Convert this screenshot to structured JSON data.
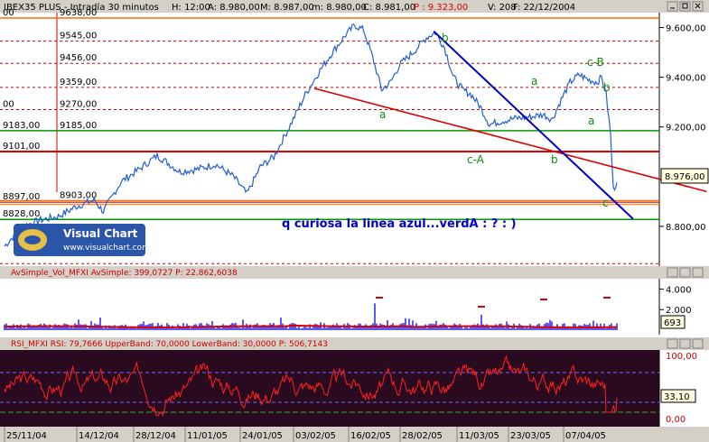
{
  "colors": {
    "price": "#1f5fd0",
    "blue_trend": "#0000c8",
    "red_trend": "#e00000",
    "support_green": "#009900",
    "level_orange": "#ff6a00",
    "level_red": "#dd0000",
    "dashed_red": "#cc0000",
    "wave_label": "#0a8f0a",
    "annotation": "#0000cc",
    "rsi_bg": "#2a0a1e",
    "rsi_line": "#ff2020",
    "volume": "#0000ee",
    "volume_avg": "#dd0000",
    "header_bg": "#d4d0c8"
  },
  "price_panel": {
    "header": {
      "symbol": "IBEX35 PLUS - Intradía 30 minutos",
      "fields": [
        "H: 12:00",
        "A: 8.980,00",
        "M: 8.987,00",
        "m: 8.980,00",
        "C: 8.981,00"
      ],
      "highlight": "P : 9.323,00",
      "tail": [
        "V: 208",
        "F: 22/12/2004"
      ]
    },
    "price_box": "8.976,00",
    "left_labels": [
      {
        "id": "l00a",
        "text": "00"
      },
      {
        "id": "l00b",
        "text": "00"
      },
      {
        "id": "l9183",
        "text": "9183,00"
      },
      {
        "id": "l9101",
        "text": "9101,00"
      },
      {
        "id": "l8897",
        "text": "8897,00"
      },
      {
        "id": "l8828",
        "text": "8828,00"
      }
    ],
    "fib_labels": [
      "9638,00",
      "9545,00",
      "9456,00",
      "9359,00",
      "9270,00",
      "9185,00",
      "8903,00"
    ],
    "wave_labels": [
      {
        "id": "b1",
        "text": "b"
      },
      {
        "id": "cB",
        "text": "c-B"
      },
      {
        "id": "a1",
        "text": "a"
      },
      {
        "id": "b2",
        "text": "b"
      },
      {
        "id": "a2",
        "text": "a"
      },
      {
        "id": "a3",
        "text": "a"
      },
      {
        "id": "cA",
        "text": "c-A"
      },
      {
        "id": "b3",
        "text": "b"
      },
      {
        "id": "c1",
        "text": "c"
      }
    ],
    "annotation": "q curiosa la linea azul...verdA : ?  : )",
    "logo": {
      "title": "Visual Chart",
      "url": "www.visualchart.com"
    }
  },
  "volume_panel": {
    "header": "AvSimple_Vol_MFXI AvSimple: 399,0727 P: 22.862,6038",
    "value_box": "693"
  },
  "rsi_panel": {
    "header": "RSI_MFXI RSI: 79,7666 UpperBand: 70,0000 LowerBand: 30,0000 P: 506,7143",
    "value_box": "33,10"
  },
  "x_labels": [
    "25/11/04",
    "14/12/04",
    "28/12/04",
    "11/01/05",
    "24/01/05",
    "03/02/05",
    "16/02/05",
    "28/02/05",
    "11/03/05",
    "23/03/05",
    "07/04/05"
  ],
  "chart_data": [
    {
      "type": "line",
      "title": "IBEX35 PLUS - Intradía 30 minutos",
      "y_ticks": [
        "9.600,00",
        "9.400,00",
        "9.200,00",
        "8.800,00"
      ],
      "ylim": [
        8640,
        9660
      ],
      "x_tick_labels": [
        "25/11/04",
        "14/12/04",
        "28/12/04",
        "11/01/05",
        "24/01/05",
        "03/02/05",
        "16/02/05",
        "28/02/05",
        "11/03/05",
        "23/03/05",
        "07/04/05"
      ],
      "series": [
        {
          "points": [
            [
              0,
              8720
            ],
            [
              20,
              8800
            ],
            [
              40,
              8825
            ],
            [
              60,
              8840
            ],
            [
              80,
              8880
            ],
            [
              100,
              8905
            ],
            [
              110,
              8860
            ],
            [
              130,
              8980
            ],
            [
              150,
              9030
            ],
            [
              170,
              9085
            ],
            [
              180,
              9060
            ],
            [
              195,
              9020
            ],
            [
              215,
              9030
            ],
            [
              235,
              9050
            ],
            [
              255,
              9000
            ],
            [
              270,
              8930
            ],
            [
              285,
              9040
            ],
            [
              300,
              9080
            ],
            [
              320,
              9220
            ],
            [
              335,
              9330
            ],
            [
              350,
              9420
            ],
            [
              365,
              9500
            ],
            [
              380,
              9570
            ],
            [
              390,
              9610
            ],
            [
              400,
              9590
            ],
            [
              410,
              9480
            ],
            [
              420,
              9350
            ],
            [
              430,
              9380
            ],
            [
              440,
              9450
            ],
            [
              455,
              9500
            ],
            [
              470,
              9560
            ],
            [
              480,
              9580
            ],
            [
              490,
              9520
            ],
            [
              500,
              9400
            ],
            [
              510,
              9350
            ],
            [
              520,
              9330
            ],
            [
              530,
              9280
            ],
            [
              540,
              9210
            ],
            [
              555,
              9225
            ],
            [
              570,
              9235
            ],
            [
              585,
              9240
            ],
            [
              600,
              9250
            ],
            [
              610,
              9230
            ],
            [
              620,
              9310
            ],
            [
              630,
              9380
            ],
            [
              640,
              9410
            ],
            [
              650,
              9390
            ],
            [
              660,
              9380
            ],
            [
              665,
              9400
            ],
            [
              670,
              9330
            ],
            [
              675,
              9170
            ],
            [
              678,
              8950
            ],
            [
              682,
              8976
            ]
          ]
        }
      ],
      "horizontal_levels": [
        9638,
        9545,
        9456,
        9359,
        9270,
        9185,
        9101,
        8903,
        8897,
        8828,
        8650
      ],
      "trendlines": [
        {
          "name": "blue",
          "from": [
            478,
            9585
          ],
          "to": [
            700,
            8830
          ]
        },
        {
          "name": "red",
          "from": [
            345,
            9355
          ],
          "to": [
            782,
            8940
          ]
        }
      ]
    },
    {
      "type": "bar",
      "title": "AvSimple_Vol_MFXI",
      "y_ticks": [
        "4.000",
        "2.000"
      ],
      "ylim": [
        0,
        5000
      ],
      "average": 399.0727
    },
    {
      "type": "line",
      "title": "RSI_MFXI",
      "y_ticks": [
        "100,00",
        "0,00"
      ],
      "ylim": [
        0,
        100
      ],
      "upper_band": 70,
      "lower_band": 30,
      "last": 33.1
    }
  ]
}
